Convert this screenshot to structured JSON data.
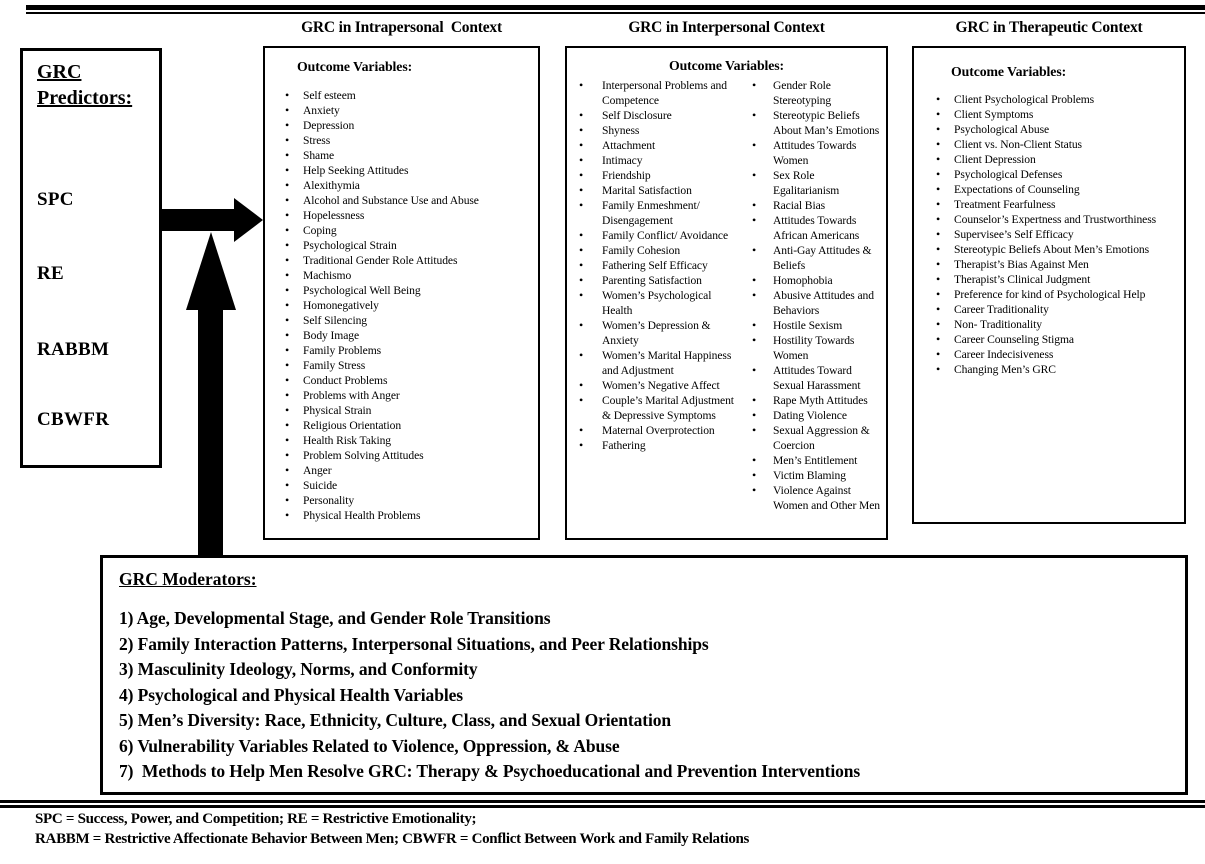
{
  "header": {
    "intrapersonal_title": "GRC in Intrapersonal  Context",
    "interpersonal_title": "GRC in Interpersonal Context",
    "therapeutic_title": "GRC in Therapeutic Context"
  },
  "predictors": {
    "title": "GRC Predictors:",
    "items": [
      "SPC",
      "RE",
      "RABBM",
      "CBWFR"
    ]
  },
  "intrapersonal": {
    "heading": "Outcome Variables:",
    "items": [
      "Self esteem",
      "Anxiety",
      "Depression",
      "Stress",
      "Shame",
      "Help Seeking Attitudes",
      "Alexithymia",
      "Alcohol and Substance Use and Abuse",
      "Hopelessness",
      "Coping",
      "Psychological Strain",
      "Traditional Gender Role Attitudes",
      "Machismo",
      "Psychological Well Being",
      "Homonegatively",
      "Self Silencing",
      "Body Image",
      "Family Problems",
      "Family Stress",
      "Conduct Problems",
      "Problems with Anger",
      "Physical Strain",
      "Religious Orientation",
      "Health Risk Taking",
      "Problem Solving Attitudes",
      "Anger",
      "Suicide",
      "Personality",
      "Physical Health Problems"
    ]
  },
  "interpersonal": {
    "heading": "Outcome Variables:",
    "items_left": [
      "Interpersonal Problems and Competence",
      "Self Disclosure",
      "Shyness",
      "Attachment",
      "Intimacy",
      "Friendship",
      "Marital Satisfaction",
      "Family Enmeshment/ Disengagement",
      "Family Conflict/ Avoidance",
      "Family Cohesion",
      "Fathering Self Efficacy",
      "Parenting Satisfaction",
      "Women’s Psychological Health",
      "Women’s Depression & Anxiety",
      "Women’s Marital Happiness and Adjustment",
      "Women’s Negative Affect",
      "Couple’s Marital Adjustment & Depressive Symptoms",
      "Maternal Overprotection",
      "Fathering"
    ],
    "items_right": [
      "Gender Role Stereotyping",
      "Stereotypic Beliefs About Man’s Emotions",
      "Attitudes Towards Women",
      "Sex Role Egalitarianism",
      "Racial Bias",
      "Attitudes Towards African Americans",
      "Anti-Gay Attitudes & Beliefs",
      "Homophobia",
      "Abusive Attitudes and Behaviors",
      "Hostile Sexism",
      "Hostility Towards Women",
      "Attitudes Toward Sexual Harassment",
      "Rape Myth Attitudes",
      "Dating Violence",
      "Sexual Aggression & Coercion",
      "Men’s Entitlement",
      "Victim Blaming",
      "Violence Against Women and Other Men"
    ]
  },
  "therapeutic": {
    "heading": "Outcome Variables:",
    "items": [
      "Client Psychological Problems",
      "Client Symptoms",
      "Psychological Abuse",
      "Client vs. Non-Client Status",
      "Client Depression",
      "Psychological Defenses",
      "Expectations of Counseling",
      "Treatment Fearfulness",
      "Counselor’s Expertness and Trustworthiness",
      "Supervisee’s Self Efficacy",
      "Stereotypic Beliefs About Men’s Emotions",
      "Therapist’s Bias Against Men",
      "Therapist’s Clinical Judgment",
      "Preference for kind of Psychological Help",
      "Career Traditionality",
      "Non- Traditionality",
      "Career Counseling Stigma",
      "Career Indecisiveness",
      "Changing Men’s GRC"
    ]
  },
  "moderators": {
    "title": "GRC Moderators:",
    "items": [
      "1) Age, Developmental Stage, and Gender Role Transitions",
      "2) Family Interaction Patterns, Interpersonal Situations, and Peer Relationships",
      "3) Masculinity Ideology, Norms, and Conformity",
      "4) Psychological and Physical Health Variables",
      "5) Men’s Diversity: Race, Ethnicity, Culture, Class, and Sexual Orientation",
      "6) Vulnerability Variables Related to Violence, Oppression, & Abuse",
      "7)  Methods to Help Men Resolve GRC: Therapy & Psychoeducational and Prevention Interventions"
    ]
  },
  "footer": {
    "line1": "SPC = Success, Power, and Competition; RE = Restrictive Emotionality;",
    "line2": "RABBM = Restrictive Affectionate Behavior Between Men; CBWFR = Conflict Between Work and Family Relations"
  },
  "colors": {
    "ink": "#000000",
    "background": "#ffffff"
  }
}
